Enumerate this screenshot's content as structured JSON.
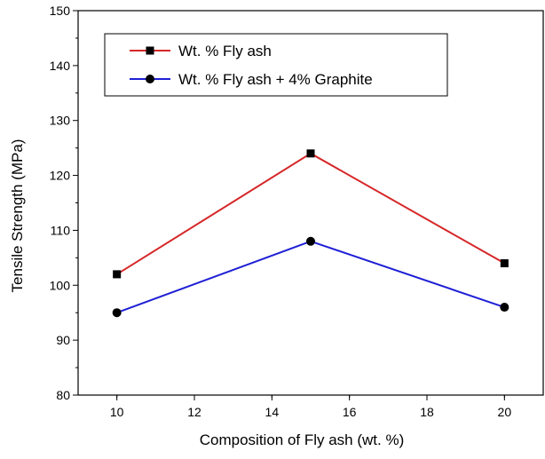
{
  "chart_data": {
    "type": "line",
    "xlabel": "Composition of Fly ash (wt. %)",
    "ylabel": "Tensile Strength (MPa)",
    "xlim": [
      9,
      21
    ],
    "ylim": [
      80,
      150
    ],
    "x_ticks": [
      10,
      12,
      14,
      16,
      18,
      20
    ],
    "y_ticks": [
      80,
      90,
      100,
      110,
      120,
      130,
      140,
      150
    ],
    "legend_position": "top-left",
    "grid": false,
    "series": [
      {
        "name": "Wt. % Fly ash",
        "color": "#d62728",
        "marker": "square",
        "x": [
          10,
          15,
          20
        ],
        "y": [
          102,
          124,
          104
        ]
      },
      {
        "name": "Wt. % Fly ash + 4% Graphite",
        "color": "#1f1fd6",
        "marker": "circle",
        "x": [
          10,
          15,
          20
        ],
        "y": [
          95,
          108,
          96
        ]
      }
    ]
  }
}
